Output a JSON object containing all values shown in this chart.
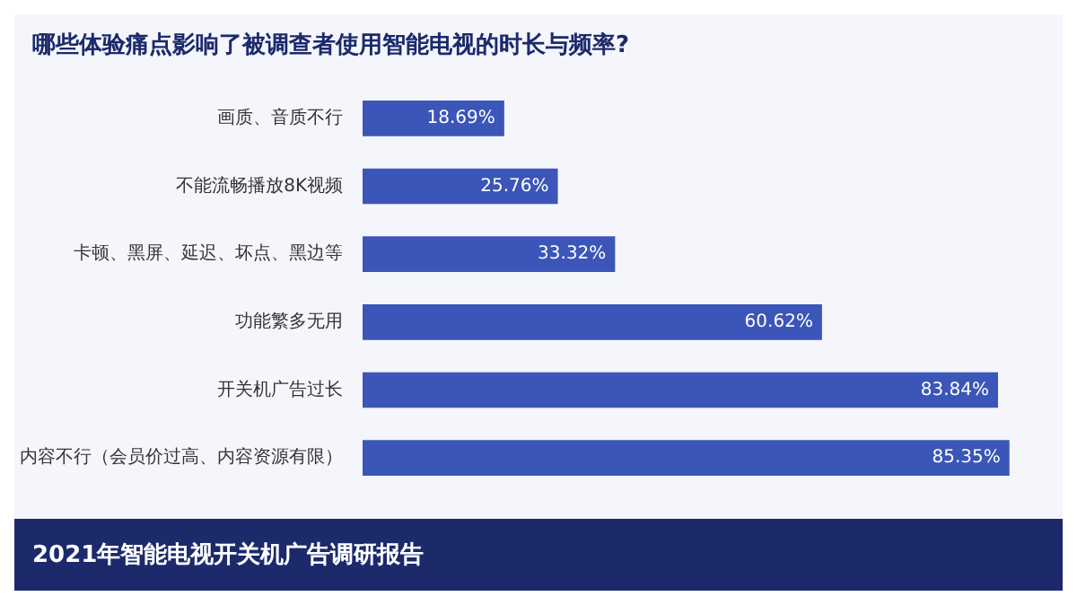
{
  "chart_data": {
    "type": "bar",
    "orientation": "horizontal",
    "title": "哪些体验痛点影响了被调查者使用智能电视的时长与频率?",
    "categories": [
      "画质、音质不行",
      "不能流畅播放8K视频",
      "卡顿、黑屏、延迟、坏点、黑边等",
      "功能繁多无用",
      "开关机广告过长",
      "内容不行（会员价过高、内容资源有限）"
    ],
    "values": [
      18.69,
      25.76,
      33.32,
      60.62,
      83.84,
      85.35
    ],
    "value_labels": [
      "18.69%",
      "25.76%",
      "33.32%",
      "60.62%",
      "83.84%",
      "85.35%"
    ],
    "color": "#3b56b8",
    "annotations": [
      "2021年智能电视开关机广告调研报告"
    ]
  }
}
